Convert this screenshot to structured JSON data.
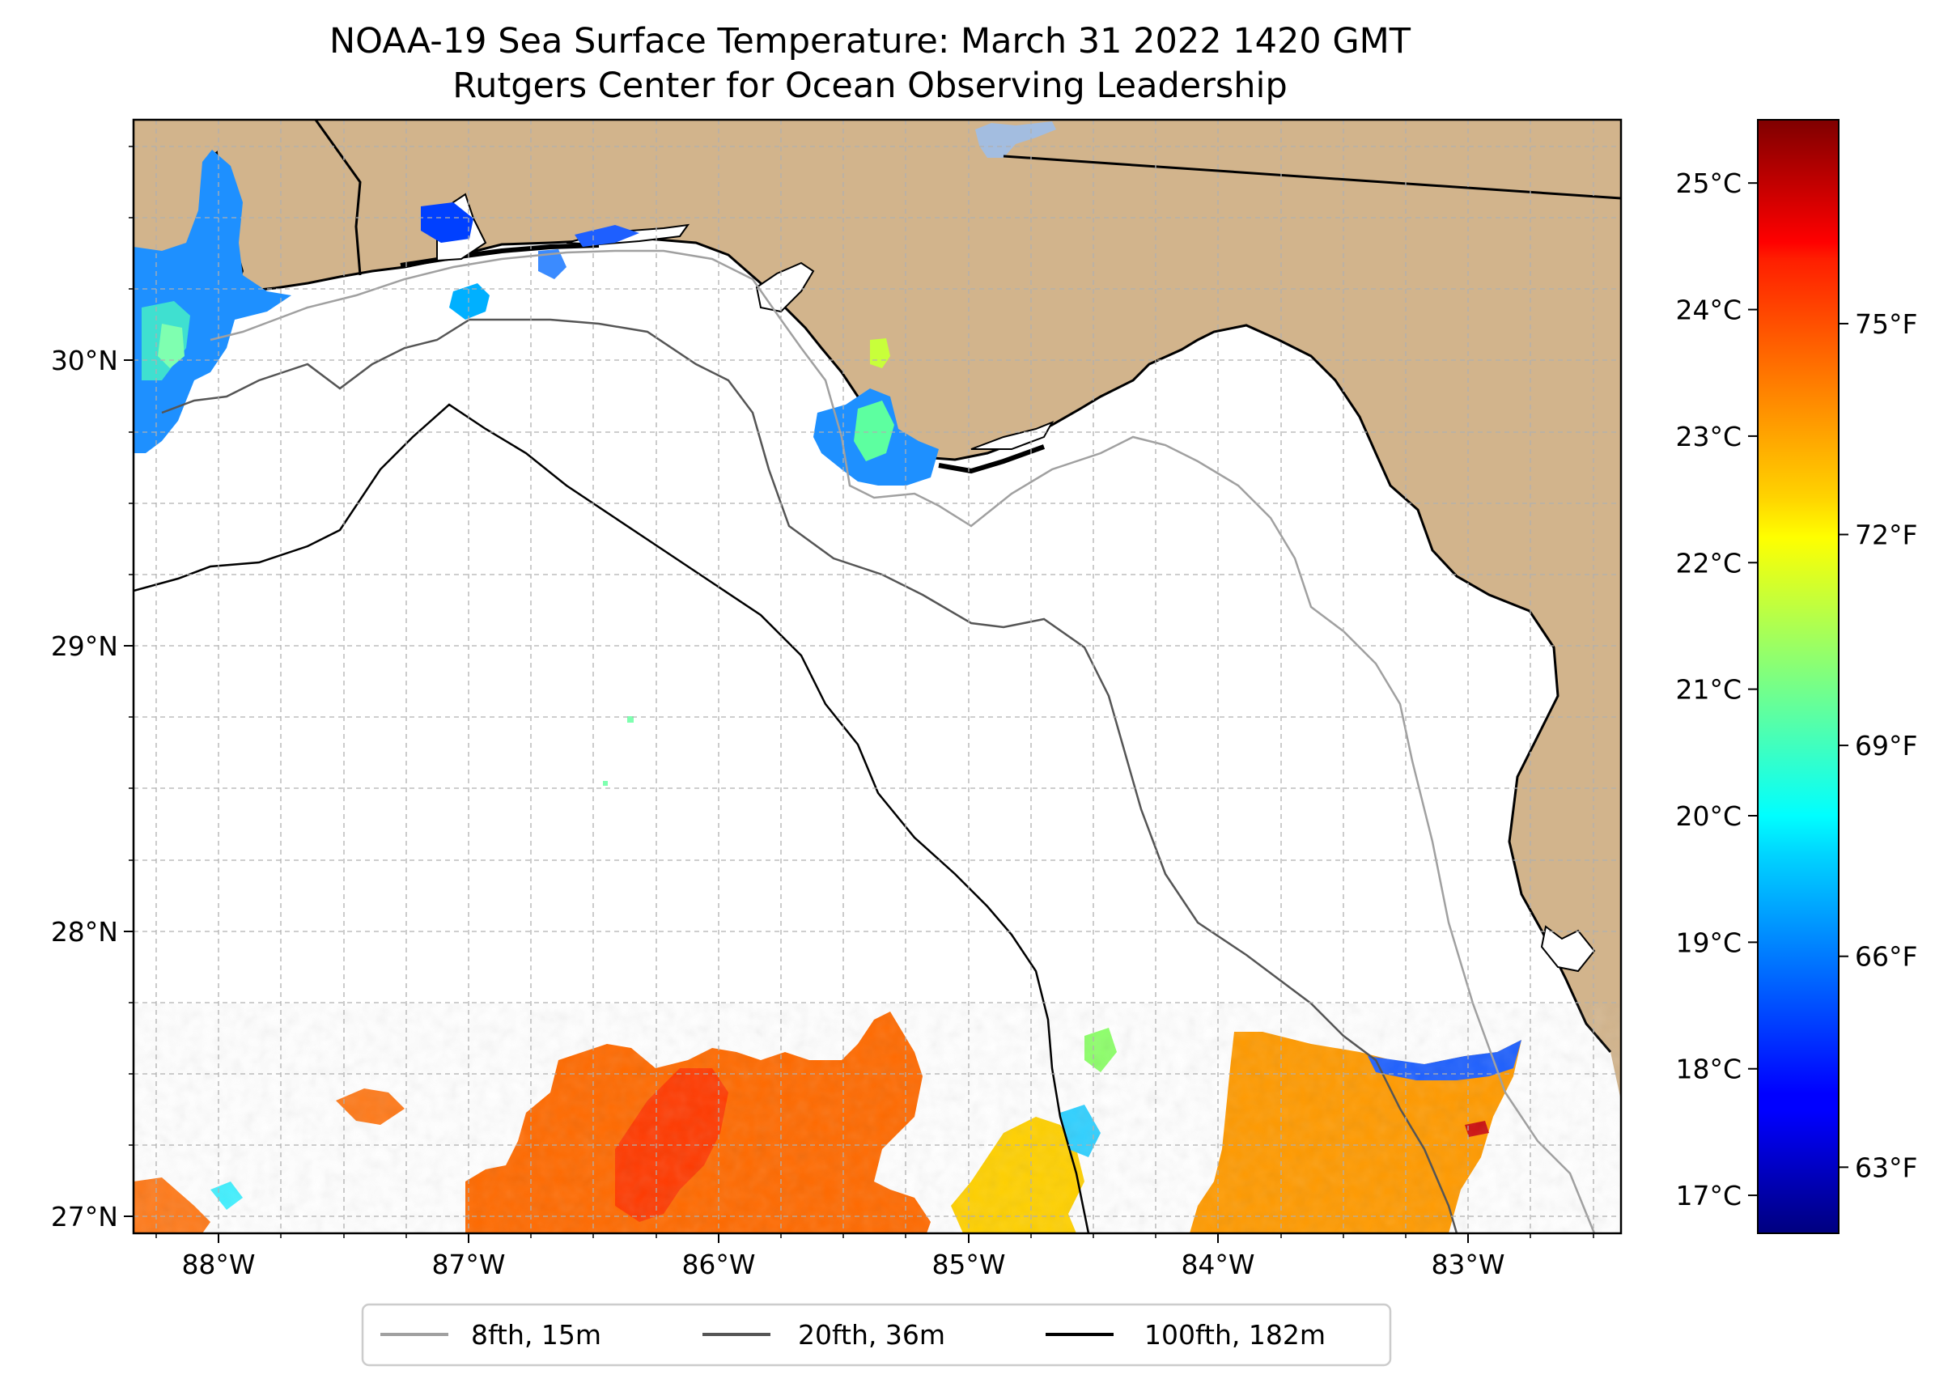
{
  "title": {
    "line1": "NOAA-19 Sea Surface Temperature: March 31 2022 1420 GMT",
    "line2": "Rutgers Center for Ocean Observing Leadership"
  },
  "map": {
    "lon_range": [
      -88.33,
      -82.39
    ],
    "lat_range": [
      26.94,
      30.87
    ],
    "land_color": "#d2b48c",
    "ocean_color": "#ffffff",
    "lon_ticks": [
      {
        "value": -88,
        "label": "88°W"
      },
      {
        "value": -87,
        "label": "87°W"
      },
      {
        "value": -86,
        "label": "86°W"
      },
      {
        "value": -85,
        "label": "85°W"
      },
      {
        "value": -84,
        "label": "84°W"
      },
      {
        "value": -83,
        "label": "83°W"
      }
    ],
    "lat_ticks": [
      {
        "value": 30,
        "label": "30°N"
      },
      {
        "value": 29,
        "label": "29°N"
      },
      {
        "value": 28,
        "label": "28°N"
      },
      {
        "value": 27,
        "label": "27°N"
      }
    ],
    "gridlines": "dashed, every 0.25°",
    "colormap": "jet"
  },
  "colorbar": {
    "range_c": [
      16.7,
      25.5
    ],
    "celsius_ticks": [
      "17°C",
      "18°C",
      "19°C",
      "20°C",
      "21°C",
      "22°C",
      "23°C",
      "24°C",
      "25°C"
    ],
    "celsius_values": [
      17,
      18,
      19,
      20,
      21,
      22,
      23,
      24,
      25
    ],
    "fahrenheit_ticks": [
      "63°F",
      "66°F",
      "69°F",
      "72°F",
      "75°F"
    ],
    "fahrenheit_values": [
      63,
      66,
      69,
      72,
      75
    ]
  },
  "legend": {
    "placement": "bottom-center",
    "items": [
      {
        "label": "8fth, 15m",
        "color": "#a0a0a0"
      },
      {
        "label": "20fth, 36m",
        "color": "#555555"
      },
      {
        "label": "100fth, 182m",
        "color": "#000000"
      }
    ]
  }
}
